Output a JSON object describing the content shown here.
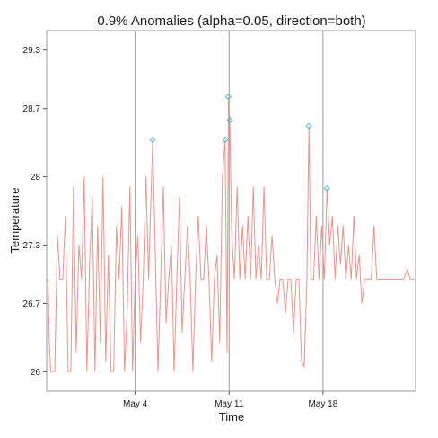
{
  "chart_data": {
    "type": "line",
    "title": "0.9% Anomalies (alpha=0.05, direction=both)",
    "xlabel": "Time",
    "ylabel": "Temperature",
    "x_ticks": [
      {
        "label": "May  4",
        "day": 4
      },
      {
        "label": "May 11",
        "day": 11
      },
      {
        "label": "May 18",
        "day": 18
      }
    ],
    "y_ticks": [
      26,
      26.7,
      27.3,
      28,
      28.7,
      29.3
    ],
    "y_tick_labels": [
      "26",
      "26.7",
      "27.3",
      "28",
      "28.7",
      "29.3"
    ],
    "xlim_days": [
      -2.6,
      24.9
    ],
    "ylim": [
      25.8,
      29.5
    ],
    "baseline": 26.95,
    "grid": "vertical lines at x ticks",
    "colors": {
      "series": "#e8968c",
      "anomaly": "#5cbcc4",
      "grid": "#9a9a9a",
      "frame": "#9a9a9a",
      "background": "#ffffff"
    },
    "series": [
      {
        "values": [
          {
            "day": -2.5,
            "t": 26.95
          },
          {
            "day": -2.4,
            "t": 26.3
          },
          {
            "day": -2.3,
            "t": 26.0
          },
          {
            "day": -2.0,
            "t": 26.0
          },
          {
            "day": -1.8,
            "t": 27.4
          },
          {
            "day": -1.6,
            "t": 26.95
          },
          {
            "day": -1.4,
            "t": 26.95
          },
          {
            "day": -1.2,
            "t": 27.6
          },
          {
            "day": -1.0,
            "t": 26.0
          },
          {
            "day": -0.8,
            "t": 26.0
          },
          {
            "day": -0.6,
            "t": 27.9
          },
          {
            "day": -0.4,
            "t": 26.2
          },
          {
            "day": -0.2,
            "t": 27.3
          },
          {
            "day": 0.0,
            "t": 26.95
          },
          {
            "day": 0.2,
            "t": 28.0
          },
          {
            "day": 0.4,
            "t": 26.0
          },
          {
            "day": 0.6,
            "t": 27.1
          },
          {
            "day": 0.8,
            "t": 27.8
          },
          {
            "day": 1.0,
            "t": 26.0
          },
          {
            "day": 1.2,
            "t": 27.5
          },
          {
            "day": 1.4,
            "t": 26.3
          },
          {
            "day": 1.6,
            "t": 28.0
          },
          {
            "day": 1.8,
            "t": 26.1
          },
          {
            "day": 2.0,
            "t": 27.2
          },
          {
            "day": 2.2,
            "t": 26.0
          },
          {
            "day": 2.4,
            "t": 26.0
          },
          {
            "day": 2.6,
            "t": 27.5
          },
          {
            "day": 2.8,
            "t": 26.95
          },
          {
            "day": 3.0,
            "t": 27.7
          },
          {
            "day": 3.2,
            "t": 26.0
          },
          {
            "day": 3.4,
            "t": 26.6
          },
          {
            "day": 3.6,
            "t": 27.9
          },
          {
            "day": 3.8,
            "t": 26.0
          },
          {
            "day": 4.0,
            "t": 26.95
          },
          {
            "day": 4.2,
            "t": 27.4
          },
          {
            "day": 4.4,
            "t": 26.3
          },
          {
            "day": 4.6,
            "t": 26.95
          },
          {
            "day": 4.8,
            "t": 28.0
          },
          {
            "day": 5.0,
            "t": 26.95
          },
          {
            "day": 5.3,
            "t": 28.38
          },
          {
            "day": 5.5,
            "t": 27.2
          },
          {
            "day": 5.7,
            "t": 26.0
          },
          {
            "day": 5.9,
            "t": 26.95
          },
          {
            "day": 6.1,
            "t": 27.9
          },
          {
            "day": 6.3,
            "t": 26.5
          },
          {
            "day": 6.5,
            "t": 26.95
          },
          {
            "day": 6.7,
            "t": 27.3
          },
          {
            "day": 6.9,
            "t": 26.0
          },
          {
            "day": 7.1,
            "t": 26.95
          },
          {
            "day": 7.3,
            "t": 27.8
          },
          {
            "day": 7.5,
            "t": 26.4
          },
          {
            "day": 7.7,
            "t": 26.95
          },
          {
            "day": 7.9,
            "t": 27.5
          },
          {
            "day": 8.1,
            "t": 26.95
          },
          {
            "day": 8.3,
            "t": 26.0
          },
          {
            "day": 8.5,
            "t": 26.95
          },
          {
            "day": 8.7,
            "t": 27.6
          },
          {
            "day": 8.9,
            "t": 26.95
          },
          {
            "day": 9.1,
            "t": 26.95
          },
          {
            "day": 9.3,
            "t": 27.5
          },
          {
            "day": 9.5,
            "t": 26.95
          },
          {
            "day": 9.7,
            "t": 26.1
          },
          {
            "day": 9.9,
            "t": 26.95
          },
          {
            "day": 10.1,
            "t": 27.2
          },
          {
            "day": 10.3,
            "t": 26.3
          },
          {
            "day": 10.5,
            "t": 28.0
          },
          {
            "day": 10.7,
            "t": 28.38
          },
          {
            "day": 10.85,
            "t": 26.2
          },
          {
            "day": 10.95,
            "t": 28.82
          },
          {
            "day": 11.05,
            "t": 28.58
          },
          {
            "day": 11.2,
            "t": 27.4
          },
          {
            "day": 11.4,
            "t": 26.95
          },
          {
            "day": 11.6,
            "t": 27.9
          },
          {
            "day": 11.8,
            "t": 26.95
          },
          {
            "day": 12.0,
            "t": 27.5
          },
          {
            "day": 12.2,
            "t": 26.95
          },
          {
            "day": 12.4,
            "t": 27.6
          },
          {
            "day": 12.6,
            "t": 26.95
          },
          {
            "day": 12.8,
            "t": 27.9
          },
          {
            "day": 13.0,
            "t": 26.95
          },
          {
            "day": 13.2,
            "t": 27.3
          },
          {
            "day": 13.4,
            "t": 26.95
          },
          {
            "day": 13.6,
            "t": 27.9
          },
          {
            "day": 13.8,
            "t": 26.95
          },
          {
            "day": 14.0,
            "t": 26.95
          },
          {
            "day": 14.2,
            "t": 27.4
          },
          {
            "day": 14.4,
            "t": 26.95
          },
          {
            "day": 14.6,
            "t": 26.7
          },
          {
            "day": 14.8,
            "t": 26.95
          },
          {
            "day": 15.0,
            "t": 26.95
          },
          {
            "day": 15.2,
            "t": 26.6
          },
          {
            "day": 15.4,
            "t": 26.95
          },
          {
            "day": 15.6,
            "t": 26.95
          },
          {
            "day": 15.8,
            "t": 26.4
          },
          {
            "day": 16.0,
            "t": 26.95
          },
          {
            "day": 16.2,
            "t": 26.95
          },
          {
            "day": 16.4,
            "t": 26.1
          },
          {
            "day": 16.6,
            "t": 26.05
          },
          {
            "day": 16.8,
            "t": 26.95
          },
          {
            "day": 16.95,
            "t": 28.52
          },
          {
            "day": 17.1,
            "t": 26.95
          },
          {
            "day": 17.3,
            "t": 26.95
          },
          {
            "day": 17.5,
            "t": 27.6
          },
          {
            "day": 17.7,
            "t": 26.95
          },
          {
            "day": 17.9,
            "t": 27.5
          },
          {
            "day": 18.1,
            "t": 26.95
          },
          {
            "day": 18.3,
            "t": 27.88
          },
          {
            "day": 18.5,
            "t": 27.3
          },
          {
            "day": 18.7,
            "t": 27.6
          },
          {
            "day": 18.9,
            "t": 26.95
          },
          {
            "day": 19.1,
            "t": 27.5
          },
          {
            "day": 19.3,
            "t": 27.1
          },
          {
            "day": 19.5,
            "t": 27.5
          },
          {
            "day": 19.7,
            "t": 26.95
          },
          {
            "day": 19.9,
            "t": 27.3
          },
          {
            "day": 20.1,
            "t": 26.95
          },
          {
            "day": 20.3,
            "t": 27.6
          },
          {
            "day": 20.5,
            "t": 26.95
          },
          {
            "day": 20.7,
            "t": 27.2
          },
          {
            "day": 20.9,
            "t": 26.7
          },
          {
            "day": 21.1,
            "t": 26.95
          },
          {
            "day": 21.3,
            "t": 26.95
          },
          {
            "day": 21.6,
            "t": 26.95
          },
          {
            "day": 21.8,
            "t": 27.5
          },
          {
            "day": 22.0,
            "t": 26.95
          },
          {
            "day": 22.5,
            "t": 26.95
          },
          {
            "day": 23.0,
            "t": 26.95
          },
          {
            "day": 23.5,
            "t": 26.95
          },
          {
            "day": 24.0,
            "t": 26.95
          },
          {
            "day": 24.3,
            "t": 27.05
          },
          {
            "day": 24.5,
            "t": 26.95
          },
          {
            "day": 24.8,
            "t": 26.95
          }
        ]
      }
    ],
    "anomalies": [
      {
        "day": 5.3,
        "t": 28.38
      },
      {
        "day": 10.7,
        "t": 28.38
      },
      {
        "day": 10.95,
        "t": 28.82
      },
      {
        "day": 11.05,
        "t": 28.58
      },
      {
        "day": 16.95,
        "t": 28.52
      },
      {
        "day": 18.3,
        "t": 27.88
      }
    ]
  }
}
